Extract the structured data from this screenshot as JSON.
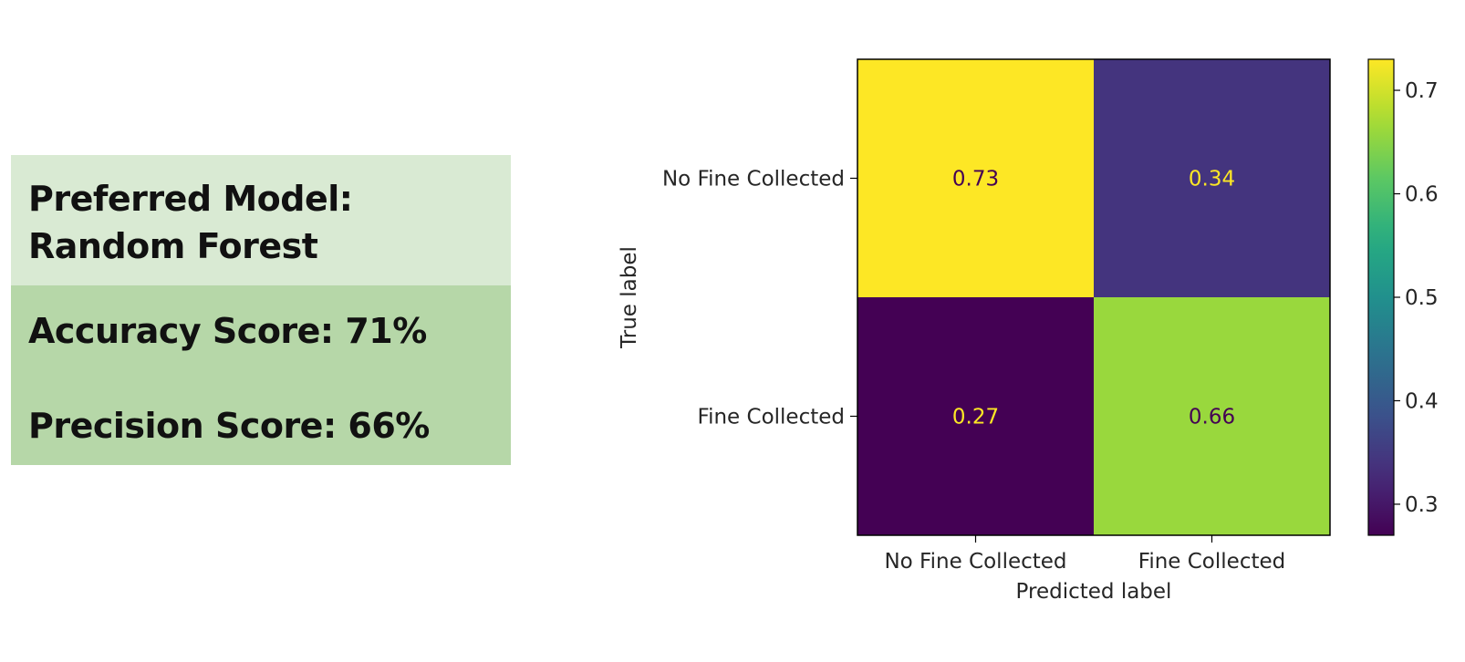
{
  "summary": {
    "model_line1": "Preferred Model:",
    "model_line2": "Random Forest",
    "accuracy": "Accuracy Score: 71%",
    "precision": "Precision Score: 66%",
    "colors": {
      "model_bg": "#d9ead3",
      "scores_bg": "#b6d7a8"
    }
  },
  "chart_data": {
    "type": "heatmap",
    "colormap": "viridis",
    "xlabel": "Predicted label",
    "ylabel": "True label",
    "x_categories": [
      "No Fine Collected",
      "Fine Collected"
    ],
    "y_categories": [
      "No Fine Collected",
      "Fine Collected"
    ],
    "values": [
      [
        0.73,
        0.34
      ],
      [
        0.27,
        0.66
      ]
    ],
    "value_labels": [
      [
        "0.73",
        "0.34"
      ],
      [
        "0.27",
        "0.66"
      ]
    ],
    "colorbar": {
      "range": [
        0.27,
        0.73
      ],
      "ticks": [
        0.3,
        0.4,
        0.5,
        0.6,
        0.7
      ],
      "tick_labels": [
        "0.3",
        "0.4",
        "0.5",
        "0.6",
        "0.7"
      ]
    }
  }
}
